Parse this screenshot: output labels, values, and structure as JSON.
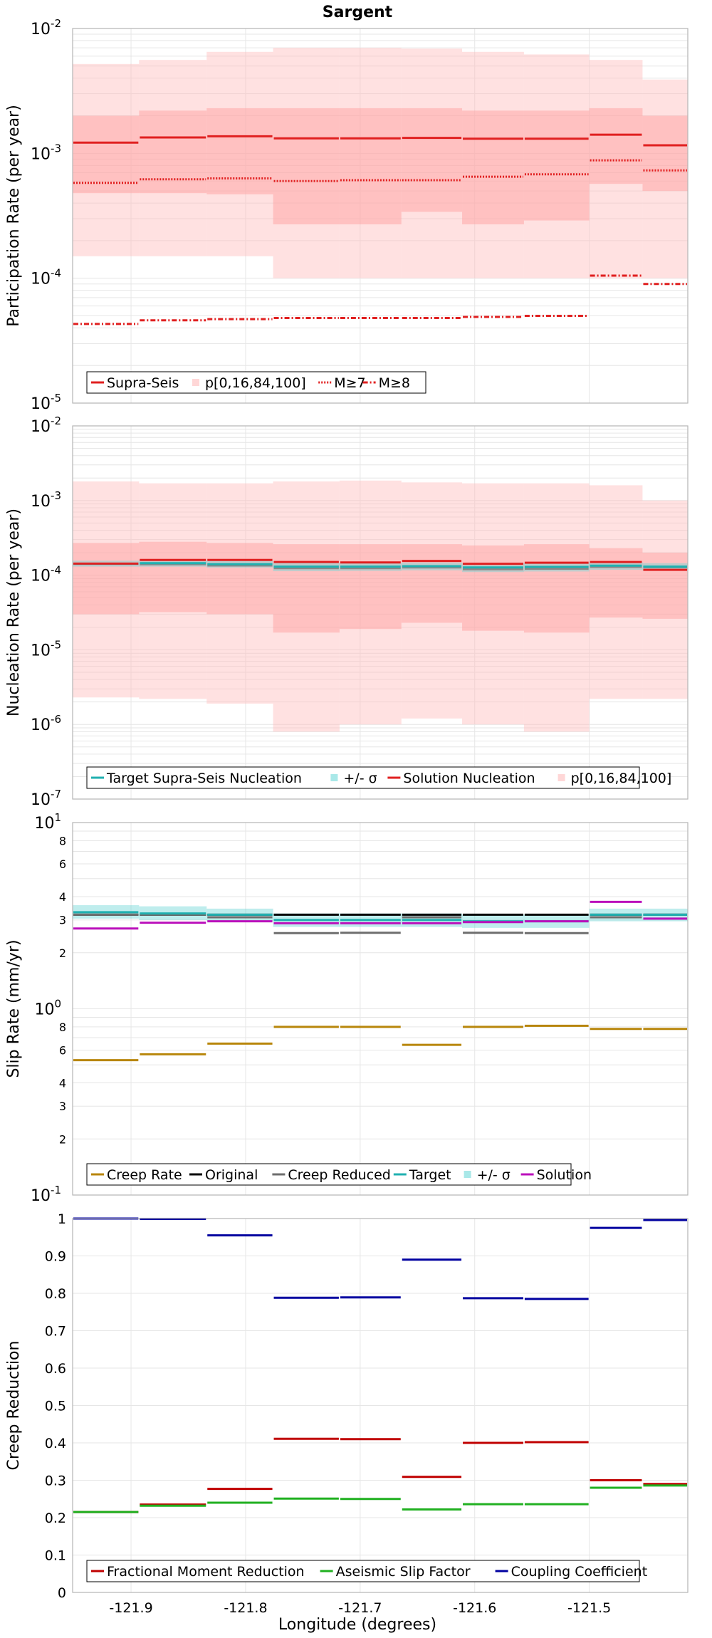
{
  "figure": {
    "title": "Sargent",
    "xlabel": "Longitude (degrees)"
  },
  "chart_data": [
    {
      "type": "line",
      "title": "Sargent",
      "ylabel": "Participation Rate (per year)",
      "yscale": "log",
      "ylim": [
        1e-05,
        0.01
      ],
      "y_ticks": [
        {
          "exp": "-2"
        },
        {
          "exp": "-3"
        },
        {
          "exp": "-4"
        },
        {
          "exp": "-5"
        }
      ],
      "xlim": [
        -121.951,
        -121.414
      ],
      "x_ticks": [
        "-121.9",
        "-121.8",
        "-121.7",
        "-121.6",
        "-121.5"
      ],
      "segment_edges": [
        -121.951,
        -121.893,
        -121.834,
        -121.776,
        -121.718,
        -121.664,
        -121.611,
        -121.557,
        -121.5,
        -121.4535,
        -121.414
      ],
      "legend": [
        "Supra-Seis",
        "p[0,16,84,100]",
        "M≥7",
        "M≥8"
      ],
      "series": [
        {
          "name": "Supra-Seis",
          "color": "#e02020",
          "style": "solid",
          "values": [
            0.00122,
            0.00134,
            0.00137,
            0.00132,
            0.00132,
            0.00133,
            0.00131,
            0.00131,
            0.00141,
            0.00116
          ]
        },
        {
          "name": "M≥7",
          "color": "#e02020",
          "style": "dotted",
          "values": [
            0.00058,
            0.00062,
            0.00063,
            0.0006,
            0.00061,
            0.00061,
            0.00065,
            0.00068,
            0.00088,
            0.00073
          ]
        },
        {
          "name": "M≥8",
          "color": "#e02020",
          "style": "dashdot",
          "values": [
            4.3e-05,
            4.6e-05,
            4.7e-05,
            4.8e-05,
            4.8e-05,
            4.8e-05,
            4.9e-05,
            5e-05,
            0.000105,
            9e-05
          ]
        }
      ],
      "bands": [
        {
          "name": "p[0,16,84,100]",
          "outer": true,
          "lower": [
            0.00015,
            0.00015,
            0.00015,
            0.0001,
            0.0001,
            0.0001,
            0.0001,
            0.0001,
            0.0001,
            0.0001
          ],
          "upper": [
            0.0052,
            0.0056,
            0.0065,
            0.007,
            0.007,
            0.0069,
            0.0065,
            0.0062,
            0.0056,
            0.0039
          ]
        },
        {
          "name": "p[0,16,84,100]",
          "outer": false,
          "lower": [
            0.00048,
            0.00048,
            0.00047,
            0.00027,
            0.00027,
            0.00034,
            0.00027,
            0.00029,
            0.00057,
            0.0005
          ],
          "upper": [
            0.002,
            0.0022,
            0.0023,
            0.0023,
            0.0023,
            0.0023,
            0.0022,
            0.0022,
            0.0023,
            0.002
          ]
        }
      ]
    },
    {
      "type": "line",
      "ylabel": "Nucleation Rate (per year)",
      "yscale": "log",
      "ylim": [
        1e-07,
        0.01
      ],
      "y_ticks": [
        {
          "exp": "-2"
        },
        {
          "exp": "-3"
        },
        {
          "exp": "-4"
        },
        {
          "exp": "-5"
        },
        {
          "exp": "-6"
        },
        {
          "exp": "-7"
        }
      ],
      "xlim": [
        -121.951,
        -121.414
      ],
      "segment_edges": [
        -121.951,
        -121.893,
        -121.834,
        -121.776,
        -121.718,
        -121.664,
        -121.611,
        -121.557,
        -121.5,
        -121.4535,
        -121.414
      ],
      "legend": [
        "Target Supra-Seis Nucleation",
        "+/- σ",
        "Solution Nucleation",
        "p[0,16,84,100]"
      ],
      "series": [
        {
          "name": "Target Supra-Seis Nucleation",
          "color": "#20b0b0",
          "style": "solid",
          "values": [
            0.000142,
            0.000145,
            0.00014,
            0.00013,
            0.00013,
            0.000132,
            0.000127,
            0.000129,
            0.000134,
            0.00013
          ]
        },
        {
          "name": "Solution Nucleation",
          "color": "#e02020",
          "style": "solid",
          "values": [
            0.000143,
            0.00016,
            0.00016,
            0.00015,
            0.000148,
            0.000155,
            0.000142,
            0.000147,
            0.00015,
            0.000118
          ]
        }
      ],
      "bands": [
        {
          "name": "p[0,16,84,100]",
          "outer": true,
          "lower": [
            2.3e-06,
            2.2e-06,
            1.9e-06,
            8e-07,
            1e-06,
            1.2e-06,
            1e-06,
            8e-07,
            2.2e-06,
            2.2e-06
          ],
          "upper": [
            0.0018,
            0.0017,
            0.0017,
            0.0018,
            0.00185,
            0.00175,
            0.0017,
            0.0017,
            0.0016,
            0.001
          ]
        },
        {
          "name": "p[0,16,84,100]",
          "outer": false,
          "lower": [
            3e-05,
            3.2e-05,
            3e-05,
            1.7e-05,
            1.9e-05,
            2.3e-05,
            1.8e-05,
            1.7e-05,
            2.7e-05,
            2.6e-05
          ],
          "upper": [
            0.00027,
            0.00028,
            0.00027,
            0.00026,
            0.00026,
            0.00026,
            0.00025,
            0.00026,
            0.00023,
            0.0002
          ]
        },
        {
          "name": "+/- σ",
          "sigma": true,
          "lower": [
            0.00013,
            0.00013,
            0.000126,
            0.000113,
            0.000114,
            0.000116,
            0.00011,
            0.000112,
            0.000118,
            0.000115
          ],
          "upper": [
            0.000156,
            0.00016,
            0.000155,
            0.000146,
            0.000146,
            0.000148,
            0.000144,
            0.000146,
            0.00015,
            0.000145
          ]
        }
      ],
      "extra_lines": [
        {
          "color": "#888888",
          "values": [
            0.000142,
            0.00014,
            0.000135,
            0.000124,
            0.000124,
            0.000127,
            0.00012,
            0.000122,
            0.000129,
            0.000128
          ]
        }
      ]
    },
    {
      "type": "line",
      "ylabel": "Slip Rate (mm/yr)",
      "yscale": "log",
      "ylim": [
        0.1,
        10
      ],
      "y_ticks": [
        {
          "exp": "1"
        },
        {
          "exp": "0"
        },
        {
          "exp": "-1"
        }
      ],
      "y_minor_labels": [
        {
          "v": 8,
          "label": "8"
        },
        {
          "v": 6,
          "label": "6"
        },
        {
          "v": 4,
          "label": "4"
        },
        {
          "v": 3,
          "label": "3"
        },
        {
          "v": 2,
          "label": "2"
        },
        {
          "v": 0.8,
          "label": "8"
        },
        {
          "v": 0.6,
          "label": "6"
        },
        {
          "v": 0.4,
          "label": "4"
        },
        {
          "v": 0.3,
          "label": "3"
        },
        {
          "v": 0.2,
          "label": "2"
        }
      ],
      "xlim": [
        -121.951,
        -121.414
      ],
      "segment_edges": [
        -121.951,
        -121.893,
        -121.834,
        -121.776,
        -121.718,
        -121.664,
        -121.611,
        -121.557,
        -121.5,
        -121.4535,
        -121.414
      ],
      "legend": [
        "Creep Rate",
        "Original",
        "Creep Reduced",
        "Target",
        "+/- σ",
        "Solution"
      ],
      "series": [
        {
          "name": "Creep Rate",
          "color": "#b8860b",
          "style": "solid",
          "values": [
            0.53,
            0.57,
            0.65,
            0.8,
            0.8,
            0.64,
            0.8,
            0.81,
            0.78,
            0.78
          ]
        },
        {
          "name": "Original",
          "color": "#000000",
          "style": "solid",
          "values": [
            3.2,
            3.2,
            3.2,
            3.2,
            3.2,
            3.2,
            3.2,
            3.2,
            3.2,
            3.2
          ]
        },
        {
          "name": "Creep Reduced",
          "color": "#6e6e6e",
          "style": "solid",
          "values": [
            3.2,
            3.2,
            3.1,
            2.55,
            2.56,
            3.1,
            2.56,
            2.55,
            3.1,
            3.2
          ]
        },
        {
          "name": "Target",
          "color": "#20b0b0",
          "style": "solid",
          "values": [
            3.3,
            3.25,
            3.2,
            3.0,
            3.0,
            3.0,
            2.95,
            2.95,
            3.2,
            3.2
          ]
        },
        {
          "name": "Solution",
          "color": "#bb10bb",
          "style": "solid",
          "values": [
            2.7,
            2.9,
            2.95,
            2.88,
            2.88,
            2.88,
            2.92,
            2.95,
            3.75,
            3.05
          ]
        }
      ],
      "bands": [
        {
          "name": "+/- σ",
          "sigma": true,
          "lower": [
            3.05,
            3.0,
            2.95,
            2.75,
            2.75,
            2.75,
            2.72,
            2.72,
            2.95,
            2.95
          ],
          "upper": [
            3.6,
            3.55,
            3.45,
            3.25,
            3.25,
            3.25,
            3.2,
            3.2,
            3.45,
            3.45
          ]
        }
      ]
    },
    {
      "type": "line",
      "ylabel": "Creep Reduction",
      "yscale": "linear",
      "ylim": [
        0,
        1
      ],
      "y_ticks_linear": [
        "0",
        "0.1",
        "0.2",
        "0.3",
        "0.4",
        "0.5",
        "0.6",
        "0.7",
        "0.8",
        "0.9",
        "1"
      ],
      "xlim": [
        -121.951,
        -121.414
      ],
      "x_ticks": [
        "-121.9",
        "-121.8",
        "-121.7",
        "-121.6",
        "-121.5"
      ],
      "segment_edges": [
        -121.951,
        -121.893,
        -121.834,
        -121.776,
        -121.718,
        -121.664,
        -121.611,
        -121.557,
        -121.5,
        -121.4535,
        -121.414
      ],
      "legend": [
        "Fractional Moment Reduction",
        "Aseismic Slip Factor",
        "Coupling Coefficient"
      ],
      "series": [
        {
          "name": "Fractional Moment Reduction",
          "color": "#c00000",
          "style": "solid",
          "values": [
            0.215,
            0.235,
            0.277,
            0.411,
            0.41,
            0.309,
            0.4,
            0.402,
            0.3,
            0.29
          ]
        },
        {
          "name": "Aseismic Slip Factor",
          "color": "#20b020",
          "style": "solid",
          "values": [
            0.215,
            0.232,
            0.24,
            0.251,
            0.25,
            0.222,
            0.236,
            0.236,
            0.28,
            0.286
          ]
        },
        {
          "name": "Coupling Coefficient",
          "color": "#0000a0",
          "style": "solid",
          "values": [
            1.0,
            0.999,
            0.955,
            0.788,
            0.789,
            0.89,
            0.787,
            0.785,
            0.975,
            0.996
          ]
        }
      ]
    }
  ]
}
